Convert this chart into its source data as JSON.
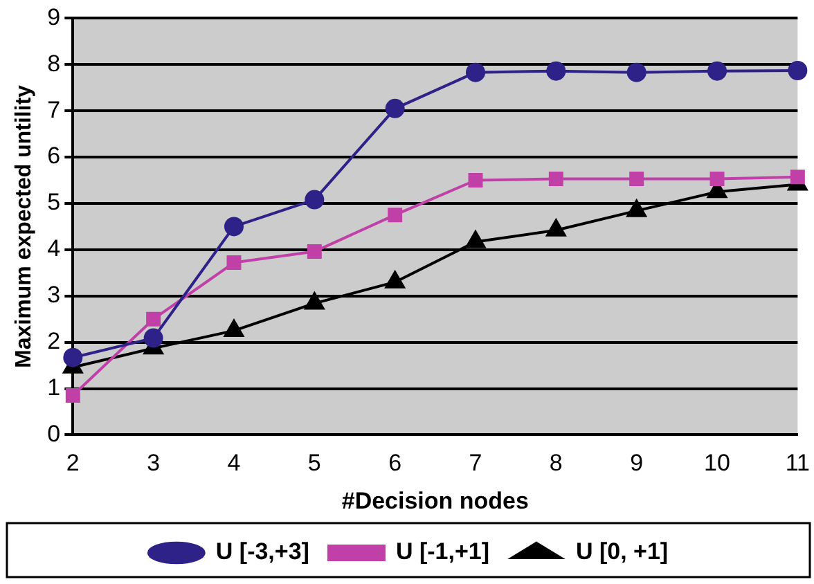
{
  "chart_data": {
    "type": "line",
    "xlabel": "#Decision nodes",
    "ylabel": "Maximum expected untility",
    "categories": [
      "2",
      "3",
      "4",
      "5",
      "6",
      "7",
      "8",
      "9",
      "10",
      "11"
    ],
    "series": [
      {
        "name": "U [-3,+3]",
        "color": "#2e2188",
        "marker": "circle",
        "values": [
          1.67,
          2.09,
          4.5,
          5.08,
          7.05,
          7.83,
          7.86,
          7.83,
          7.86,
          7.87
        ]
      },
      {
        "name": "U [-1,+1]",
        "color": "#c040a8",
        "marker": "square",
        "values": [
          0.85,
          2.5,
          3.72,
          3.96,
          4.75,
          5.5,
          5.53,
          5.53,
          5.53,
          5.57
        ]
      },
      {
        "name": "U [0, +1]",
        "color": "#000000",
        "marker": "triangle",
        "values": [
          1.46,
          1.87,
          2.25,
          2.84,
          3.3,
          4.17,
          4.42,
          4.84,
          5.25,
          5.41
        ]
      }
    ],
    "ylim": [
      0,
      9
    ],
    "yticks": [
      0,
      1,
      2,
      3,
      4,
      5,
      6,
      7,
      8,
      9
    ],
    "grid": "y",
    "legend": "bottom",
    "line_style": "solid"
  }
}
